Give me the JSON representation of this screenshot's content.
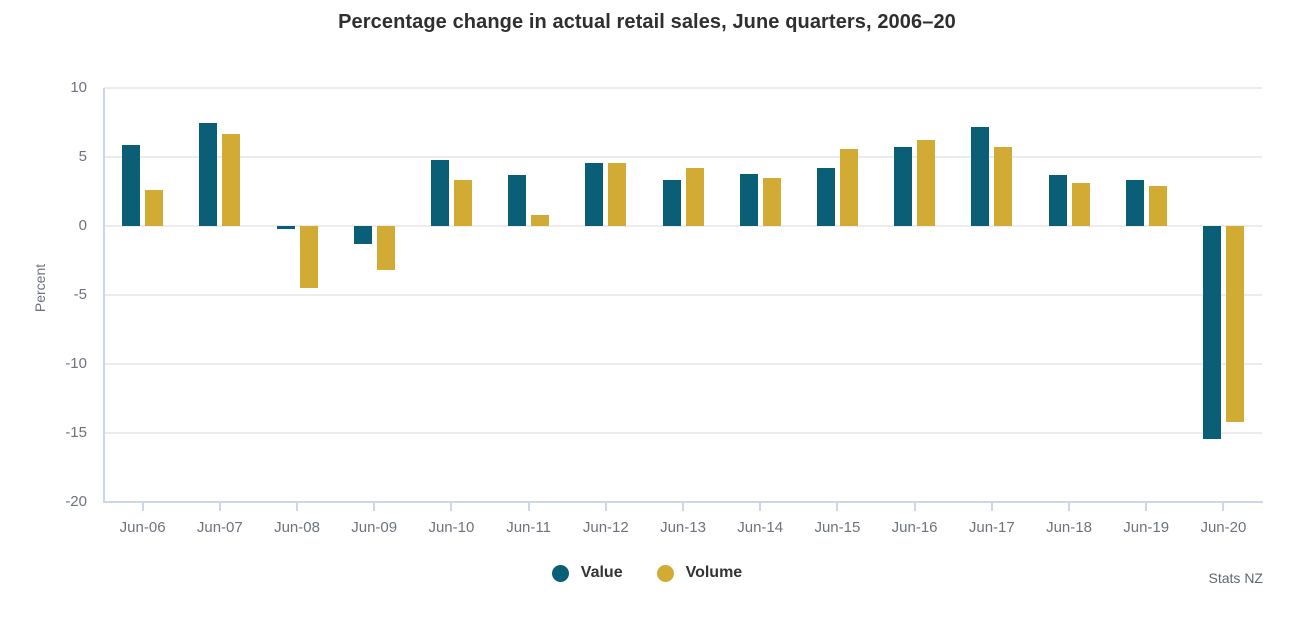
{
  "chart_data": {
    "type": "bar",
    "title": "Percentage change in actual retail sales, June quarters, 2006–20",
    "ylabel": "Percent",
    "xlabel": "",
    "categories": [
      "Jun-06",
      "Jun-07",
      "Jun-08",
      "Jun-09",
      "Jun-10",
      "Jun-11",
      "Jun-12",
      "Jun-13",
      "Jun-14",
      "Jun-15",
      "Jun-16",
      "Jun-17",
      "Jun-18",
      "Jun-19",
      "Jun-20"
    ],
    "series": [
      {
        "name": "Value",
        "color": "#0a5e75",
        "values": [
          5.9,
          7.5,
          -0.2,
          -1.3,
          4.8,
          3.7,
          4.6,
          3.3,
          3.8,
          4.2,
          5.7,
          7.2,
          3.7,
          3.3,
          -15.4
        ]
      },
      {
        "name": "Volume",
        "color": "#d2ab35",
        "values": [
          2.6,
          6.7,
          -4.5,
          -3.2,
          3.3,
          0.8,
          4.6,
          4.2,
          3.5,
          5.6,
          6.2,
          5.7,
          3.1,
          2.9,
          -14.2
        ]
      }
    ],
    "ylim": [
      -20,
      10
    ],
    "yticks": [
      10,
      5,
      0,
      -5,
      -10,
      -15,
      -20
    ],
    "grid": "horizontal",
    "legend_position": "bottom-center"
  },
  "source": "Stats NZ",
  "palette": {
    "value_teal": "#0a5e75",
    "volume_gold": "#d2ab35",
    "gridline": "#ececec",
    "axis_line": "#cdd5e8",
    "title_text": "#2f2f2f",
    "axis_text": "#6d737d",
    "source_text": "#5e6870"
  }
}
